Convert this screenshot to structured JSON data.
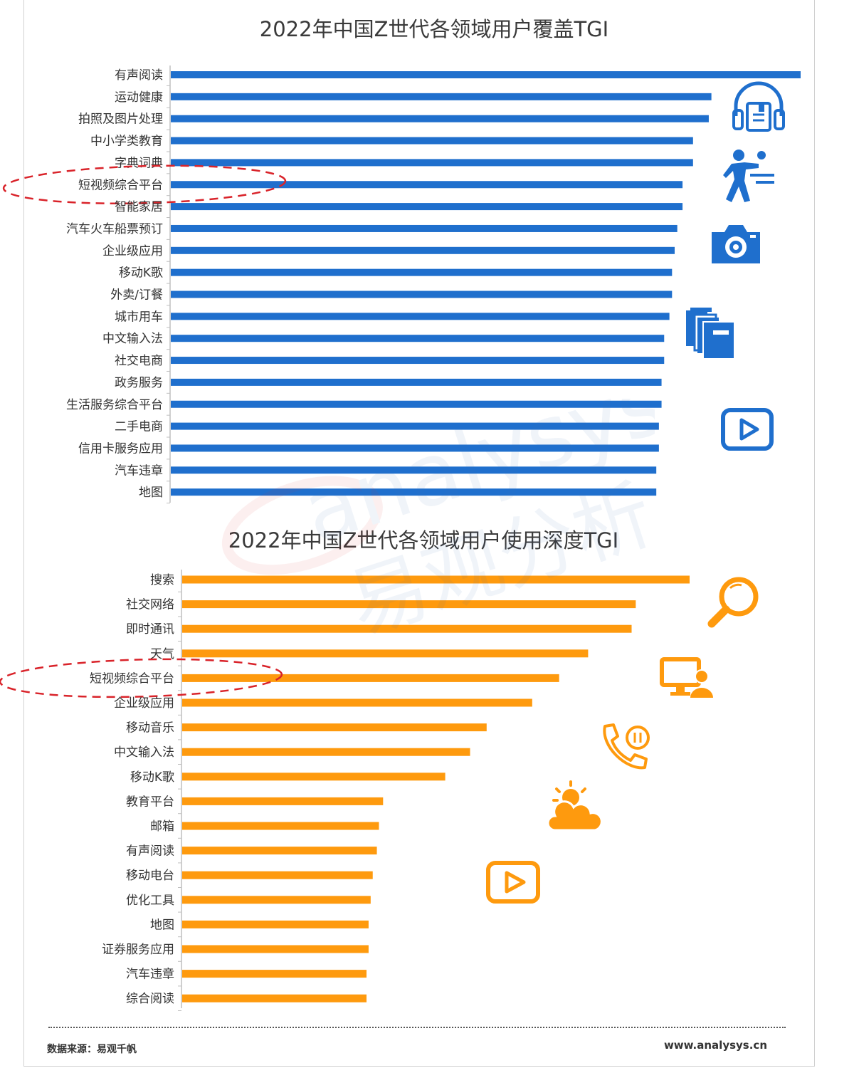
{
  "chart_data": [
    {
      "type": "bar",
      "orientation": "horizontal",
      "title": "2022年中国Z世代各领域用户覆盖TGI",
      "categories": [
        "有声阅读",
        "运动健康",
        "拍照及图片处理",
        "中小学类教育",
        "字典词典",
        "短视频综合平台",
        "智能家居",
        "汽车火车船票预订",
        "企业级应用",
        "移动K歌",
        "外卖/订餐",
        "城市用车",
        "中文输入法",
        "社交电商",
        "政务服务",
        "生活服务综合平台",
        "二手电商",
        "信用卡服务应用",
        "汽车违章",
        "地图"
      ],
      "values": [
        240,
        206,
        205,
        199,
        199,
        195,
        195,
        193,
        192,
        191,
        191,
        190,
        188,
        188,
        187,
        187,
        186,
        186,
        185,
        185
      ],
      "bar_color": "#1f6fcd",
      "highlighted_category": "短视频综合平台"
    },
    {
      "type": "bar",
      "orientation": "horizontal",
      "title": "2022年中国Z世代各领域用户使用深度TGI",
      "categories": [
        "搜索",
        "社交网络",
        "即时通讯",
        "天气",
        "短视频综合平台",
        "企业级应用",
        "移动音乐",
        "中文输入法",
        "移动K歌",
        "教育平台",
        "邮箱",
        "有声阅读",
        "移动电台",
        "优化工具",
        "地图",
        "证券服务应用",
        "汽车违章",
        "综合阅读"
      ],
      "values": [
        245,
        219,
        217,
        196,
        182,
        169,
        147,
        139,
        127,
        97,
        95,
        94,
        92,
        91,
        90,
        90,
        89,
        89
      ],
      "bar_color": "#fe9a0e",
      "highlighted_category": "短视频综合平台"
    }
  ],
  "icons": {
    "chart1": [
      "headphones-book-icon",
      "table-tennis-icon",
      "camera-icon",
      "books-icon",
      "video-play-icon"
    ],
    "chart2": [
      "magnifier-icon",
      "monitor-user-icon",
      "phone-call-icon",
      "weather-icon",
      "video-play-icon"
    ]
  },
  "highlight_color": "#d9232a",
  "watermark": {
    "brand": "analysys",
    "cn": "易观分析"
  },
  "footer": {
    "source": "数据来源：易观千帆",
    "site": "www.analysys.cn"
  }
}
